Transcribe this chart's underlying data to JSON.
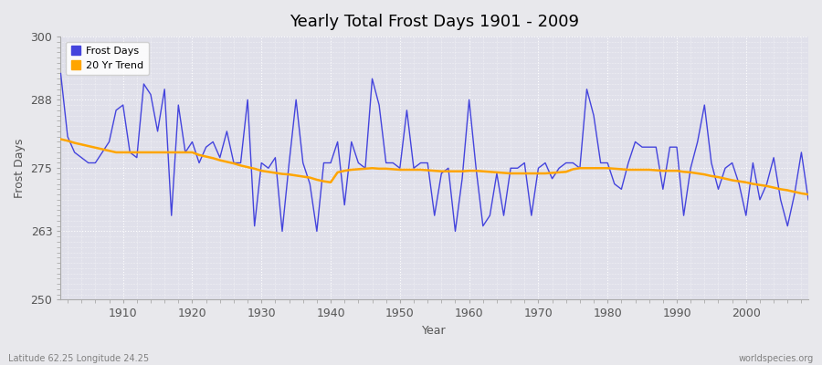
{
  "title": "Yearly Total Frost Days 1901 - 2009",
  "xlabel": "Year",
  "ylabel": "Frost Days",
  "lat_lon_label": "Latitude 62.25 Longitude 24.25",
  "watermark": "worldspecies.org",
  "ylim": [
    250,
    300
  ],
  "yticks": [
    250,
    263,
    275,
    288,
    300
  ],
  "line_color": "#4444dd",
  "trend_color": "#FFA500",
  "bg_color": "#e8e8ec",
  "plot_bg_color": "#e0e0ea",
  "years": [
    1901,
    1902,
    1903,
    1904,
    1905,
    1906,
    1907,
    1908,
    1909,
    1910,
    1911,
    1912,
    1913,
    1914,
    1915,
    1916,
    1917,
    1918,
    1919,
    1920,
    1921,
    1922,
    1923,
    1924,
    1925,
    1926,
    1927,
    1928,
    1929,
    1930,
    1931,
    1932,
    1933,
    1934,
    1935,
    1936,
    1937,
    1938,
    1939,
    1940,
    1941,
    1942,
    1943,
    1944,
    1945,
    1946,
    1947,
    1948,
    1949,
    1950,
    1951,
    1952,
    1953,
    1954,
    1955,
    1956,
    1957,
    1958,
    1959,
    1960,
    1961,
    1962,
    1963,
    1964,
    1965,
    1966,
    1967,
    1968,
    1969,
    1970,
    1971,
    1972,
    1973,
    1974,
    1975,
    1976,
    1977,
    1978,
    1979,
    1980,
    1981,
    1982,
    1983,
    1984,
    1985,
    1986,
    1987,
    1988,
    1989,
    1990,
    1991,
    1992,
    1993,
    1994,
    1995,
    1996,
    1997,
    1998,
    1999,
    2000,
    2001,
    2002,
    2003,
    2004,
    2005,
    2006,
    2007,
    2008,
    2009
  ],
  "frost_days": [
    293,
    281,
    278,
    277,
    276,
    276,
    278,
    280,
    286,
    287,
    278,
    277,
    291,
    289,
    282,
    290,
    266,
    287,
    278,
    280,
    276,
    279,
    280,
    277,
    282,
    276,
    276,
    288,
    264,
    276,
    275,
    277,
    263,
    276,
    288,
    276,
    272,
    263,
    276,
    276,
    280,
    268,
    280,
    276,
    275,
    292,
    287,
    276,
    276,
    275,
    286,
    275,
    276,
    276,
    266,
    274,
    275,
    263,
    273,
    288,
    275,
    264,
    266,
    274,
    266,
    275,
    275,
    276,
    266,
    275,
    276,
    273,
    275,
    276,
    276,
    275,
    290,
    285,
    276,
    276,
    272,
    271,
    276,
    280,
    279,
    279,
    279,
    271,
    279,
    279,
    266,
    275,
    280,
    287,
    276,
    271,
    275,
    276,
    272,
    266,
    276,
    269,
    272,
    277,
    269,
    264,
    270,
    278,
    269
  ],
  "trend_values": [
    280.5,
    280.2,
    279.8,
    279.5,
    279.2,
    278.9,
    278.6,
    278.3,
    278.0,
    278.0,
    278.0,
    278.0,
    278.0,
    278.0,
    278.0,
    278.0,
    278.0,
    278.0,
    278.0,
    278.0,
    277.5,
    277.2,
    276.9,
    276.5,
    276.2,
    275.9,
    275.5,
    275.2,
    274.9,
    274.5,
    274.3,
    274.1,
    273.9,
    273.8,
    273.6,
    273.4,
    273.2,
    272.8,
    272.5,
    272.3,
    274.2,
    274.5,
    274.7,
    274.8,
    274.9,
    275.0,
    274.9,
    274.9,
    274.8,
    274.7,
    274.7,
    274.7,
    274.7,
    274.6,
    274.5,
    274.4,
    274.4,
    274.4,
    274.4,
    274.5,
    274.5,
    274.4,
    274.3,
    274.2,
    274.1,
    274.0,
    274.0,
    274.0,
    274.0,
    274.0,
    274.0,
    274.1,
    274.2,
    274.3,
    274.8,
    275.0,
    275.0,
    275.0,
    275.0,
    275.0,
    274.9,
    274.8,
    274.7,
    274.7,
    274.7,
    274.7,
    274.6,
    274.5,
    274.5,
    274.5,
    274.3,
    274.2,
    274.0,
    273.8,
    273.5,
    273.3,
    273.0,
    272.7,
    272.5,
    272.3,
    272.0,
    271.8,
    271.6,
    271.3,
    271.0,
    270.8,
    270.5,
    270.2,
    270.0
  ]
}
